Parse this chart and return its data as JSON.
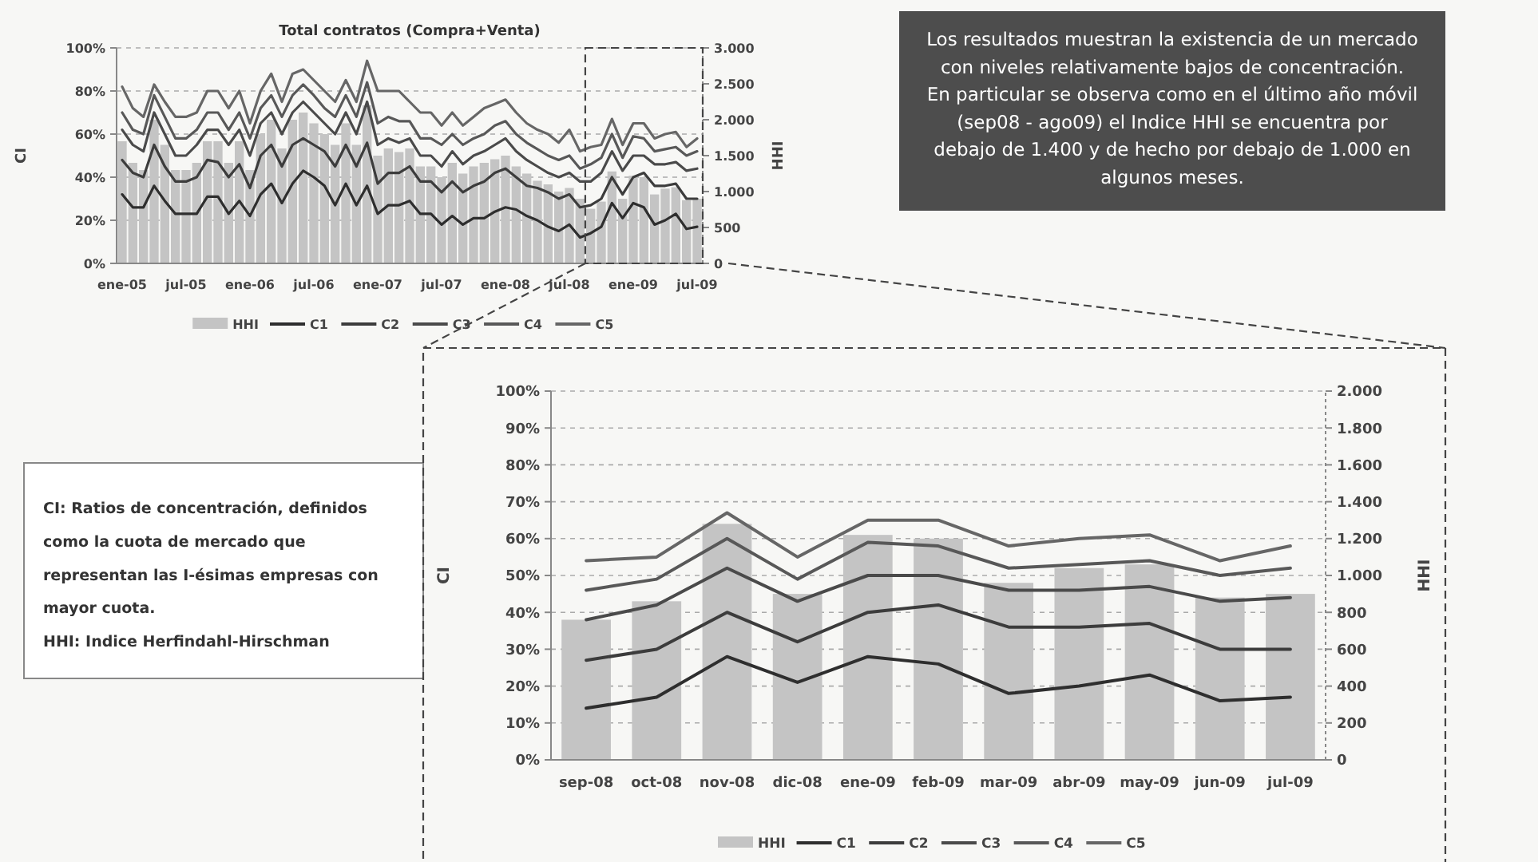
{
  "chart_data": [
    {
      "type": "line",
      "title": "Total contratos (Compra+Venta)",
      "ylabel": "CI",
      "y2label": "HHI",
      "categories": [
        "ene-05",
        null,
        null,
        null,
        null,
        null,
        "jul-05",
        null,
        null,
        null,
        null,
        null,
        "ene-06",
        null,
        null,
        null,
        null,
        null,
        "jul-06",
        null,
        null,
        null,
        null,
        null,
        "ene-07",
        null,
        null,
        null,
        null,
        null,
        "jul-07",
        null,
        null,
        null,
        null,
        null,
        "ene-08",
        null,
        null,
        null,
        null,
        null,
        "jul-08",
        null,
        null,
        null,
        null,
        null,
        "ene-09",
        null,
        null,
        null,
        null,
        null,
        "jul-09"
      ],
      "series": [
        {
          "name": "HHI",
          "type": "bar",
          "axis": "y2",
          "color": "#c4c4c4",
          "values": [
            1700,
            1400,
            1300,
            2000,
            1650,
            1300,
            1300,
            1400,
            1700,
            1700,
            1400,
            1700,
            1300,
            1800,
            2000,
            1600,
            2000,
            2100,
            1950,
            1800,
            1650,
            1950,
            1650,
            2200,
            1500,
            1600,
            1550,
            1600,
            1350,
            1350,
            1200,
            1400,
            1250,
            1350,
            1400,
            1450,
            1500,
            1350,
            1250,
            1150,
            1100,
            1000,
            1050,
            900,
            760,
            860,
            1280,
            900,
            1220,
            1200,
            960,
            1040,
            1060,
            880,
            900
          ]
        },
        {
          "name": "C1",
          "color": "#2e2e2e",
          "values": [
            32,
            26,
            26,
            36,
            29,
            23,
            23,
            23,
            31,
            31,
            23,
            29,
            22,
            32,
            37,
            28,
            37,
            43,
            40,
            36,
            27,
            37,
            27,
            36,
            23,
            27,
            27,
            29,
            23,
            23,
            18,
            22,
            18,
            21,
            21,
            24,
            26,
            25,
            22,
            20,
            17,
            15,
            18,
            12,
            14,
            17,
            28,
            21,
            28,
            26,
            18,
            20,
            23,
            16,
            17
          ]
        },
        {
          "name": "C2",
          "color": "#3c3c3c",
          "values": [
            48,
            42,
            40,
            55,
            45,
            38,
            38,
            40,
            48,
            47,
            40,
            46,
            35,
            50,
            55,
            45,
            55,
            58,
            55,
            52,
            45,
            55,
            45,
            56,
            37,
            42,
            42,
            45,
            38,
            38,
            33,
            38,
            33,
            36,
            38,
            42,
            44,
            40,
            36,
            35,
            33,
            30,
            32,
            26,
            27,
            30,
            40,
            32,
            40,
            42,
            36,
            36,
            37,
            30,
            30
          ]
        },
        {
          "name": "C3",
          "color": "#4a4a4a",
          "values": [
            62,
            55,
            52,
            70,
            60,
            50,
            50,
            55,
            62,
            62,
            55,
            62,
            50,
            65,
            70,
            60,
            70,
            75,
            70,
            65,
            60,
            70,
            60,
            75,
            55,
            58,
            56,
            58,
            50,
            50,
            45,
            52,
            46,
            50,
            52,
            55,
            58,
            52,
            48,
            45,
            42,
            40,
            42,
            38,
            38,
            42,
            52,
            43,
            50,
            50,
            46,
            46,
            47,
            43,
            44
          ]
        },
        {
          "name": "C4",
          "color": "#585858",
          "values": [
            70,
            62,
            60,
            78,
            68,
            58,
            58,
            62,
            70,
            70,
            62,
            70,
            58,
            72,
            78,
            68,
            78,
            83,
            78,
            72,
            68,
            78,
            68,
            84,
            65,
            68,
            66,
            66,
            58,
            58,
            55,
            60,
            55,
            58,
            60,
            64,
            66,
            60,
            56,
            53,
            50,
            48,
            50,
            44,
            46,
            49,
            60,
            49,
            59,
            58,
            52,
            53,
            54,
            50,
            52
          ]
        },
        {
          "name": "C5",
          "color": "#666666",
          "values": [
            82,
            72,
            68,
            83,
            75,
            68,
            68,
            70,
            80,
            80,
            72,
            80,
            65,
            80,
            88,
            75,
            88,
            90,
            85,
            80,
            75,
            85,
            75,
            94,
            80,
            80,
            80,
            75,
            70,
            70,
            64,
            70,
            64,
            68,
            72,
            74,
            76,
            70,
            65,
            62,
            60,
            56,
            62,
            52,
            54,
            55,
            67,
            55,
            65,
            65,
            58,
            60,
            61,
            54,
            58
          ]
        }
      ],
      "ylim": [
        0,
        100
      ],
      "yticks": [
        {
          "value": 0,
          "label": "0%"
        },
        {
          "value": 20,
          "label": "20%"
        },
        {
          "value": 40,
          "label": "40%"
        },
        {
          "value": 60,
          "label": "60%"
        },
        {
          "value": 80,
          "label": "80%"
        },
        {
          "value": 100,
          "label": "100%"
        }
      ],
      "y2lim": [
        0,
        3000
      ],
      "y2ticks": [
        0,
        500,
        {
          "value": 1000,
          "label": "1.000"
        },
        {
          "value": 1500,
          "label": "1.500"
        },
        {
          "value": 2000,
          "label": "2.000"
        },
        {
          "value": 2500,
          "label": "2.500"
        },
        {
          "value": 3000,
          "label": "3.000"
        }
      ],
      "grid": "y",
      "legend": "bottom",
      "annotations": [
        "Los resultados muestran la existencia de un mercado con niveles relativamente bajos de concentración. En particular se observa como en el último año móvil (sep08 - ago09) el Indice HHI se encuentra por debajo de 1.400 y de hecho por debajo de 1.000 en algunos meses."
      ]
    },
    {
      "type": "line",
      "ylabel": "CI",
      "y2label": "HHI",
      "categories": [
        "sep-08",
        "oct-08",
        "nov-08",
        "dic-08",
        "ene-09",
        "feb-09",
        "mar-09",
        "abr-09",
        "may-09",
        "jun-09",
        "jul-09"
      ],
      "series": [
        {
          "name": "HHI",
          "type": "bar",
          "axis": "y2",
          "color": "#c4c4c4",
          "values": [
            760,
            860,
            1280,
            900,
            1220,
            1200,
            960,
            1040,
            1060,
            880,
            900
          ]
        },
        {
          "name": "C1",
          "color": "#2e2e2e",
          "values": [
            14,
            17,
            28,
            21,
            28,
            26,
            18,
            20,
            23,
            16,
            17
          ]
        },
        {
          "name": "C2",
          "color": "#3c3c3c",
          "values": [
            27,
            30,
            40,
            32,
            40,
            42,
            36,
            36,
            37,
            30,
            30
          ]
        },
        {
          "name": "C3",
          "color": "#4a4a4a",
          "values": [
            38,
            42,
            52,
            43,
            50,
            50,
            46,
            46,
            47,
            43,
            44
          ]
        },
        {
          "name": "C4",
          "color": "#585858",
          "values": [
            46,
            49,
            60,
            49,
            59,
            58,
            52,
            53,
            54,
            50,
            52
          ]
        },
        {
          "name": "C5",
          "color": "#666666",
          "values": [
            54,
            55,
            67,
            55,
            65,
            65,
            58,
            60,
            61,
            54,
            58
          ]
        }
      ],
      "ylim": [
        0,
        100
      ],
      "yticks": [
        {
          "value": 0,
          "label": "0%"
        },
        {
          "value": 10,
          "label": "10%"
        },
        {
          "value": 20,
          "label": "20%"
        },
        {
          "value": 30,
          "label": "30%"
        },
        {
          "value": 40,
          "label": "40%"
        },
        {
          "value": 50,
          "label": "50%"
        },
        {
          "value": 60,
          "label": "60%"
        },
        {
          "value": 70,
          "label": "70%"
        },
        {
          "value": 80,
          "label": "80%"
        },
        {
          "value": 90,
          "label": "90%"
        },
        {
          "value": 100,
          "label": "100%"
        }
      ],
      "y2lim": [
        0,
        2000
      ],
      "y2ticks": [
        0,
        200,
        400,
        600,
        800,
        {
          "value": 1000,
          "label": "1.000"
        },
        {
          "value": 1200,
          "label": "1.200"
        },
        {
          "value": 1400,
          "label": "1.400"
        },
        {
          "value": 1600,
          "label": "1.600"
        },
        {
          "value": 1800,
          "label": "1.800"
        },
        {
          "value": 2000,
          "label": "2.000"
        }
      ],
      "grid": "y",
      "legend": "bottom",
      "annotations": [
        "CI: Ratios de concentración, definidos como la cuota de mercado que representan las I-ésimas empresas con mayor cuota.",
        "HHI: Indice Herfindahl-Hirschman"
      ]
    }
  ]
}
